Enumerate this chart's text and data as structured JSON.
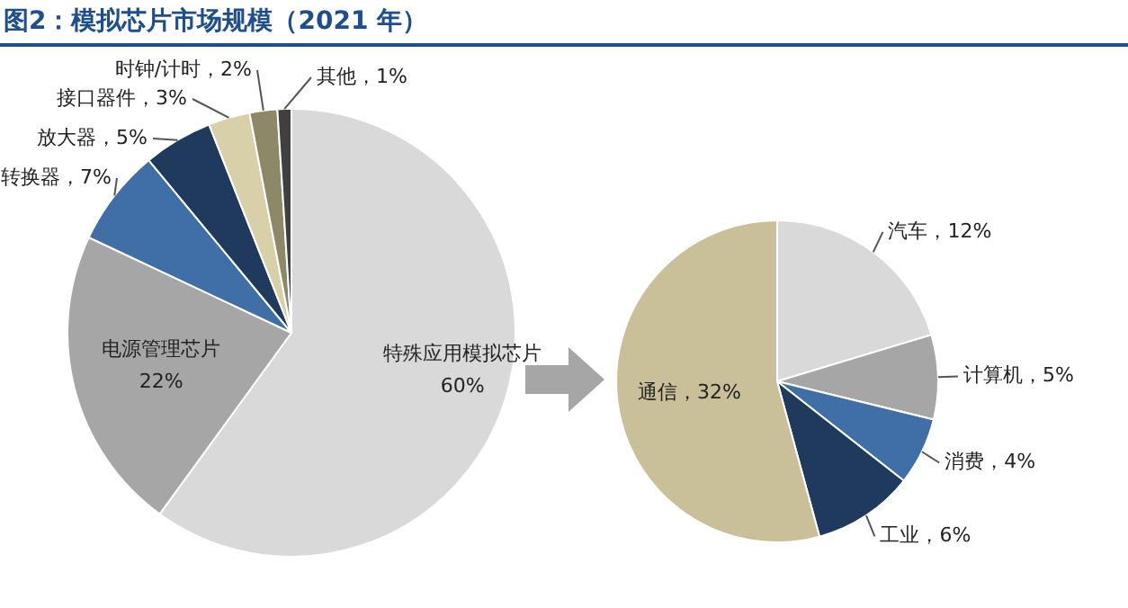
{
  "chart_data": [
    {
      "type": "pie",
      "title": "图2：模拟芯片市场规模（2021 年）",
      "categories": [
        "特殊应用模拟芯片",
        "电源管理芯片",
        "转换器",
        "放大器",
        "接口器件",
        "时钟/计时",
        "其他"
      ],
      "values": [
        60,
        22,
        7,
        5,
        3,
        2,
        1
      ],
      "value_labels": [
        "60%",
        "22%",
        "7%",
        "5%",
        "3%",
        "2%",
        "1%"
      ],
      "colors": [
        "#d9d9d9",
        "#a6a6a6",
        "#3f6fa6",
        "#1f3a5c",
        "#d8d0a8",
        "#8c8868",
        "#404040"
      ]
    },
    {
      "type": "pie",
      "categories": [
        "汽车",
        "计算机",
        "消费",
        "工业",
        "通信"
      ],
      "values": [
        12,
        5,
        4,
        6,
        32
      ],
      "value_labels": [
        "12%",
        "5%",
        "4%",
        "6%",
        "32%"
      ],
      "colors": [
        "#d9d9d9",
        "#a6a6a6",
        "#3f6fa6",
        "#1f3a5c",
        "#c9c09a"
      ]
    }
  ]
}
